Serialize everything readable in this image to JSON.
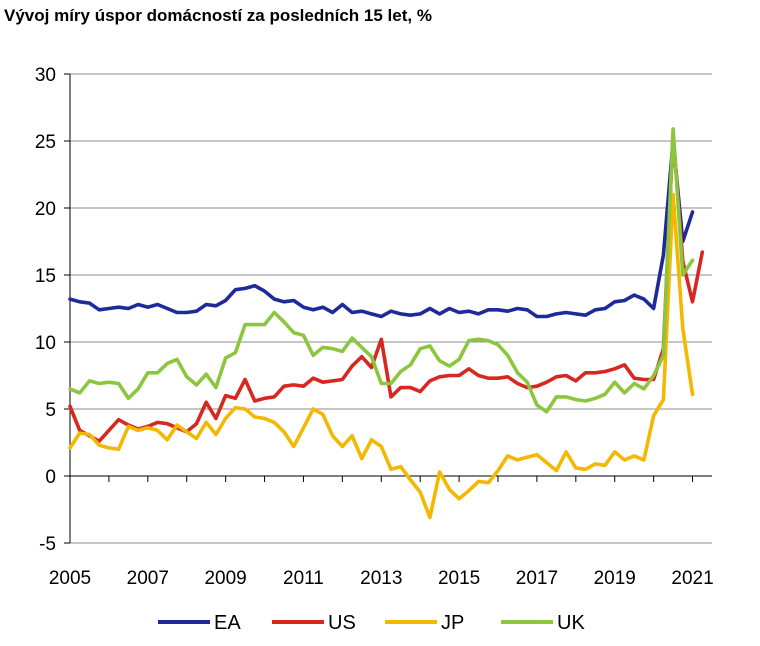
{
  "chart_data": {
    "type": "line",
    "title": "Vývoj míry úspor domácností za posledních 15 let, %",
    "xlabel": "",
    "ylabel": "",
    "xlim": [
      2005,
      2021.5
    ],
    "ylim": [
      -5,
      30
    ],
    "y_ticks": [
      "-5",
      "0",
      "5",
      "10",
      "15",
      "20",
      "25",
      "30"
    ],
    "x_ticks": [
      "2005",
      "2007",
      "2009",
      "2011",
      "2013",
      "2015",
      "2017",
      "2019",
      "2021"
    ],
    "grid": "horizontal",
    "legend_position": "bottom",
    "x": [
      2005,
      2005.25,
      2005.5,
      2005.75,
      2006,
      2006.25,
      2006.5,
      2006.75,
      2007,
      2007.25,
      2007.5,
      2007.75,
      2008,
      2008.25,
      2008.5,
      2008.75,
      2009,
      2009.25,
      2009.5,
      2009.75,
      2010,
      2010.25,
      2010.5,
      2010.75,
      2011,
      2011.25,
      2011.5,
      2011.75,
      2012,
      2012.25,
      2012.5,
      2012.75,
      2013,
      2013.25,
      2013.5,
      2013.75,
      2014,
      2014.25,
      2014.5,
      2014.75,
      2015,
      2015.25,
      2015.5,
      2015.75,
      2016,
      2016.25,
      2016.5,
      2016.75,
      2017,
      2017.25,
      2017.5,
      2017.75,
      2018,
      2018.25,
      2018.5,
      2018.75,
      2019,
      2019.25,
      2019.5,
      2019.75,
      2020,
      2020.25,
      2020.5,
      2020.75,
      2021,
      2021.25
    ],
    "series": [
      {
        "name": "EA",
        "color": "#1F2A9A",
        "values": [
          13.2,
          13.0,
          12.9,
          12.4,
          12.5,
          12.6,
          12.5,
          12.8,
          12.6,
          12.8,
          12.5,
          12.2,
          12.2,
          12.3,
          12.8,
          12.7,
          13.1,
          13.9,
          14.0,
          14.2,
          13.8,
          13.2,
          13.0,
          13.1,
          12.6,
          12.4,
          12.6,
          12.2,
          12.8,
          12.2,
          12.3,
          12.1,
          11.9,
          12.3,
          12.1,
          12.0,
          12.1,
          12.5,
          12.1,
          12.5,
          12.2,
          12.3,
          12.1,
          12.4,
          12.4,
          12.3,
          12.5,
          12.4,
          11.9,
          11.9,
          12.1,
          12.2,
          12.1,
          12.0,
          12.4,
          12.5,
          13.0,
          13.1,
          13.5,
          13.2,
          12.5,
          16.5,
          25.0,
          17.5,
          19.7,
          null
        ],
        "dash": ""
      },
      {
        "name": "US",
        "color": "#D7281F",
        "values": [
          5.2,
          3.4,
          3.0,
          2.6,
          3.4,
          4.2,
          3.8,
          3.5,
          3.7,
          4.0,
          3.9,
          3.6,
          3.3,
          3.9,
          5.5,
          4.3,
          6.0,
          5.8,
          7.2,
          5.6,
          5.8,
          5.9,
          6.7,
          6.8,
          6.7,
          7.3,
          7.0,
          7.1,
          7.2,
          8.2,
          8.9,
          8.1,
          10.2,
          5.9,
          6.6,
          6.6,
          6.3,
          7.1,
          7.4,
          7.5,
          7.5,
          8.0,
          7.5,
          7.3,
          7.3,
          7.4,
          6.9,
          6.6,
          6.7,
          7.0,
          7.4,
          7.5,
          7.1,
          7.7,
          7.7,
          7.8,
          8.0,
          8.3,
          7.3,
          7.2,
          7.2,
          9.5,
          25.6,
          16.0,
          13.0,
          16.7
        ],
        "dash": ""
      },
      {
        "name": "JP",
        "color": "#F4B800",
        "values": [
          2.1,
          3.2,
          3.1,
          2.3,
          2.1,
          2.0,
          3.7,
          3.4,
          3.6,
          3.4,
          2.7,
          3.8,
          3.3,
          2.8,
          4.0,
          3.1,
          4.3,
          5.1,
          5.0,
          4.4,
          4.3,
          4.0,
          3.3,
          2.2,
          3.6,
          5.0,
          4.6,
          3.0,
          2.2,
          3.0,
          1.3,
          2.7,
          2.2,
          0.5,
          0.7,
          -0.3,
          -1.2,
          -3.1,
          0.3,
          -1.0,
          -1.7,
          -1.1,
          -0.4,
          -0.5,
          0.4,
          1.5,
          1.2,
          1.4,
          1.6,
          1.0,
          0.4,
          1.8,
          0.6,
          0.5,
          0.9,
          0.8,
          1.8,
          1.2,
          1.5,
          1.2,
          4.5,
          5.7,
          21.0,
          11.0,
          6.1,
          null
        ],
        "dash": ""
      },
      {
        "name": "UK",
        "color": "#8CC63F",
        "values": [
          6.5,
          6.2,
          7.1,
          6.9,
          7.0,
          6.9,
          5.8,
          6.5,
          7.7,
          7.7,
          8.4,
          8.7,
          7.4,
          6.8,
          7.6,
          6.6,
          8.8,
          9.2,
          11.3,
          11.3,
          11.3,
          12.2,
          11.5,
          10.7,
          10.5,
          9.0,
          9.6,
          9.5,
          9.3,
          10.3,
          9.6,
          8.9,
          6.9,
          6.9,
          7.8,
          8.3,
          9.5,
          9.7,
          8.6,
          8.2,
          8.7,
          10.1,
          10.2,
          10.1,
          9.8,
          9.0,
          7.7,
          7.0,
          5.3,
          4.8,
          5.9,
          5.9,
          5.7,
          5.6,
          5.8,
          6.1,
          7.0,
          6.2,
          6.9,
          6.5,
          7.5,
          9.0,
          25.9,
          15.0,
          16.1,
          null
        ],
        "dash": ""
      }
    ]
  }
}
